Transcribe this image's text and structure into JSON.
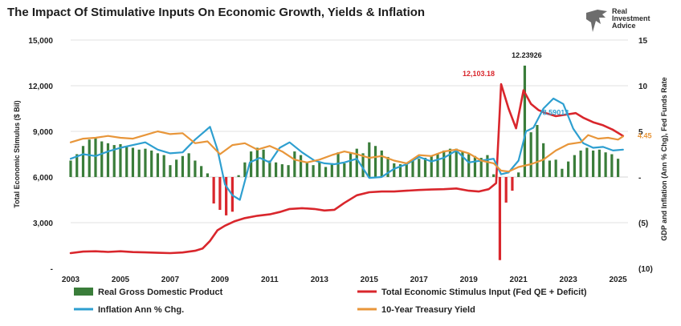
{
  "chart_data": {
    "type": "bar+line",
    "title": "The Impact Of Stimulative Inputs On Economic Growth, Yields & Inflation",
    "brand": [
      "Real",
      "Investment",
      "Advice"
    ],
    "left_axis": {
      "label": "Total Economic Stimulus ($ Bil)",
      "ylim": [
        0,
        15000
      ],
      "ticks": [
        0,
        3000,
        6000,
        9000,
        12000,
        15000
      ],
      "tick_labels": [
        "-",
        "3,000",
        "6,000",
        "9,000",
        "12,000",
        "15,000"
      ]
    },
    "right_axis": {
      "label": "GDP and Inflation (Ann % Chg), Fed Funds Rate",
      "ylim": [
        -10,
        15
      ],
      "ticks": [
        -10,
        -5,
        0,
        5,
        10,
        15
      ],
      "tick_labels": [
        "(10)",
        "(5)",
        "-",
        "5",
        "10",
        "15"
      ]
    },
    "x_axis": {
      "xlim": [
        2003,
        2025.4
      ],
      "ticks": [
        2003,
        2005,
        2007,
        2009,
        2011,
        2013,
        2015,
        2017,
        2019,
        2021,
        2023,
        2025
      ],
      "tick_labels": [
        "2003",
        "2005",
        "2007",
        "2009",
        "2011",
        "2013",
        "2015",
        "2017",
        "2019",
        "2021",
        "2023",
        "2025"
      ]
    },
    "annotations": [
      {
        "text": "12,103.18",
        "x": 2020.3,
        "axis": "left",
        "y": 12103,
        "color": "#d9262c"
      },
      {
        "text": "12.23926",
        "x": 2021.2,
        "axis": "right",
        "y": 12.2,
        "color": "#1a1a1a"
      },
      {
        "text": "8.59013",
        "x": 2022.3,
        "axis": "right",
        "y": 6.1,
        "color": "#2e9fd0"
      },
      {
        "text": "4.45",
        "x": 2025.4,
        "axis": "right",
        "y": 4.45,
        "color": "#e8963a"
      }
    ],
    "series": [
      {
        "name": "Real Gross Domestic Product",
        "type": "bar",
        "axis": "right",
        "color": "#3a7d3a",
        "x": [
          2003.0,
          2003.25,
          2003.5,
          2003.75,
          2004.0,
          2004.25,
          2004.5,
          2004.75,
          2005.0,
          2005.25,
          2005.5,
          2005.75,
          2006.0,
          2006.25,
          2006.5,
          2006.75,
          2007.0,
          2007.25,
          2007.5,
          2007.75,
          2008.0,
          2008.25,
          2008.5,
          2008.75,
          2009.0,
          2009.25,
          2009.5,
          2009.75,
          2010.0,
          2010.25,
          2010.5,
          2010.75,
          2011.0,
          2011.25,
          2011.5,
          2011.75,
          2012.0,
          2012.25,
          2012.5,
          2012.75,
          2013.0,
          2013.25,
          2013.5,
          2013.75,
          2014.0,
          2014.25,
          2014.5,
          2014.75,
          2015.0,
          2015.25,
          2015.5,
          2015.75,
          2016.0,
          2016.25,
          2016.5,
          2016.75,
          2017.0,
          2017.25,
          2017.5,
          2017.75,
          2018.0,
          2018.25,
          2018.5,
          2018.75,
          2019.0,
          2019.25,
          2019.5,
          2019.75,
          2020.0,
          2020.25,
          2020.5,
          2020.75,
          2021.0,
          2021.25,
          2021.5,
          2021.75,
          2022.0,
          2022.25,
          2022.5,
          2022.75,
          2023.0,
          2023.25,
          2023.5,
          2023.75,
          2024.0,
          2024.25,
          2024.5,
          2024.75,
          2025.0
        ],
        "values": [
          1.8,
          2.5,
          3.4,
          4.1,
          4.3,
          3.9,
          3.7,
          3.5,
          3.6,
          3.4,
          3.2,
          3.0,
          3.1,
          2.9,
          2.6,
          2.4,
          1.3,
          1.9,
          2.3,
          2.6,
          1.8,
          1.2,
          0.4,
          -2.9,
          -3.6,
          -4.2,
          -3.8,
          0.2,
          1.6,
          2.8,
          3.2,
          3.0,
          1.8,
          1.6,
          1.4,
          1.3,
          2.8,
          2.4,
          1.6,
          1.3,
          1.7,
          1.1,
          1.5,
          2.7,
          1.5,
          2.6,
          3.1,
          2.6,
          3.8,
          3.4,
          2.9,
          2.2,
          1.5,
          1.4,
          1.5,
          1.9,
          2.0,
          2.1,
          2.3,
          2.6,
          2.9,
          3.1,
          3.1,
          2.8,
          2.5,
          2.3,
          2.1,
          2.4,
          0.3,
          -9.1,
          -2.8,
          -1.5,
          0.5,
          12.2,
          4.9,
          5.7,
          3.7,
          1.8,
          1.9,
          0.9,
          1.7,
          2.4,
          2.9,
          3.2,
          2.9,
          3.0,
          2.7,
          2.5,
          2.0
        ]
      },
      {
        "name": "Total Economic Stimulus Input (Fed QE + Deficit)",
        "type": "line",
        "axis": "left",
        "color": "#d9262c",
        "x": [
          2003.0,
          2003.5,
          2004.0,
          2004.5,
          2005.0,
          2005.5,
          2006.0,
          2006.5,
          2007.0,
          2007.5,
          2008.0,
          2008.3,
          2008.6,
          2008.9,
          2009.2,
          2009.6,
          2010.0,
          2010.5,
          2011.0,
          2011.4,
          2011.8,
          2012.3,
          2012.8,
          2013.2,
          2013.6,
          2014.0,
          2014.5,
          2015.0,
          2015.5,
          2016.0,
          2016.5,
          2017.0,
          2017.5,
          2018.0,
          2018.5,
          2019.0,
          2019.4,
          2019.8,
          2020.1,
          2020.3,
          2020.6,
          2020.9,
          2021.2,
          2021.5,
          2021.8,
          2022.1,
          2022.5,
          2022.9,
          2023.3,
          2023.6,
          2024.0,
          2024.4,
          2024.8,
          2025.2
        ],
        "values": [
          1000,
          1100,
          1120,
          1080,
          1120,
          1070,
          1050,
          1020,
          1000,
          1040,
          1150,
          1300,
          1800,
          2500,
          2800,
          3100,
          3300,
          3450,
          3550,
          3700,
          3900,
          3950,
          3900,
          3800,
          3850,
          4300,
          4800,
          5000,
          5050,
          5050,
          5100,
          5150,
          5180,
          5200,
          5250,
          5100,
          5050,
          5200,
          5600,
          12103,
          10500,
          9200,
          11700,
          10800,
          10400,
          10200,
          10000,
          10100,
          10200,
          9900,
          9600,
          9400,
          9100,
          8700
        ]
      },
      {
        "name": "Inflation Ann % Chg.",
        "type": "line",
        "axis": "right",
        "color": "#2e9fd0",
        "x": [
          2003.0,
          2003.5,
          2004.0,
          2004.5,
          2005.0,
          2005.5,
          2006.0,
          2006.5,
          2007.0,
          2007.5,
          2008.0,
          2008.3,
          2008.6,
          2008.9,
          2009.2,
          2009.5,
          2009.8,
          2010.2,
          2010.6,
          2011.0,
          2011.4,
          2011.8,
          2012.3,
          2012.8,
          2013.2,
          2013.6,
          2014.0,
          2014.5,
          2015.0,
          2015.5,
          2016.0,
          2016.5,
          2017.0,
          2017.5,
          2018.0,
          2018.5,
          2019.0,
          2019.5,
          2020.0,
          2020.3,
          2020.6,
          2021.0,
          2021.3,
          2021.6,
          2022.0,
          2022.4,
          2022.8,
          2023.2,
          2023.6,
          2024.0,
          2024.4,
          2024.8,
          2025.2
        ],
        "values": [
          2.0,
          2.5,
          2.3,
          2.8,
          3.2,
          3.5,
          3.8,
          3.0,
          2.6,
          2.7,
          4.1,
          4.8,
          5.5,
          3.0,
          -0.8,
          -2.0,
          -2.5,
          1.6,
          2.1,
          1.6,
          3.2,
          3.8,
          2.7,
          1.8,
          1.5,
          1.4,
          1.6,
          2.0,
          -0.1,
          0.0,
          0.9,
          1.4,
          2.2,
          1.7,
          2.1,
          2.9,
          1.6,
          1.8,
          2.0,
          0.3,
          0.5,
          1.8,
          5.0,
          5.4,
          7.5,
          8.6,
          8.0,
          5.3,
          3.7,
          3.2,
          3.3,
          2.9,
          3.0
        ]
      },
      {
        "name": "10-Year Treasury Yield",
        "type": "line",
        "axis": "right",
        "color": "#e8963a",
        "x": [
          2003.0,
          2003.5,
          2004.0,
          2004.5,
          2005.0,
          2005.5,
          2006.0,
          2006.5,
          2007.0,
          2007.5,
          2008.0,
          2008.5,
          2009.0,
          2009.5,
          2010.0,
          2010.5,
          2011.0,
          2011.5,
          2012.0,
          2012.5,
          2013.0,
          2013.5,
          2014.0,
          2014.5,
          2015.0,
          2015.5,
          2016.0,
          2016.5,
          2017.0,
          2017.5,
          2018.0,
          2018.5,
          2019.0,
          2019.5,
          2020.0,
          2020.3,
          2020.6,
          2021.0,
          2021.5,
          2022.0,
          2022.5,
          2023.0,
          2023.5,
          2023.8,
          2024.2,
          2024.6,
          2025.0,
          2025.2
        ],
        "values": [
          3.8,
          4.2,
          4.3,
          4.5,
          4.3,
          4.2,
          4.6,
          5.0,
          4.7,
          4.8,
          3.7,
          3.9,
          2.5,
          3.5,
          3.7,
          3.0,
          3.4,
          2.8,
          1.9,
          1.6,
          1.9,
          2.4,
          2.8,
          2.5,
          2.1,
          2.3,
          1.8,
          1.5,
          2.4,
          2.3,
          2.8,
          3.0,
          2.6,
          1.8,
          1.5,
          0.7,
          0.6,
          1.1,
          1.4,
          1.9,
          2.9,
          3.6,
          3.8,
          4.6,
          4.2,
          4.3,
          4.1,
          4.45
        ]
      }
    ],
    "legend": [
      {
        "label": "Real Gross Domestic Product",
        "kind": "bar",
        "color": "#3a7d3a"
      },
      {
        "label": "Total Economic Stimulus Input (Fed QE + Deficit)",
        "kind": "line",
        "color": "#d9262c"
      },
      {
        "label": "Inflation Ann % Chg.",
        "kind": "line",
        "color": "#2e9fd0"
      },
      {
        "label": "10-Year Treasury Yield",
        "kind": "line",
        "color": "#e8963a"
      }
    ]
  }
}
